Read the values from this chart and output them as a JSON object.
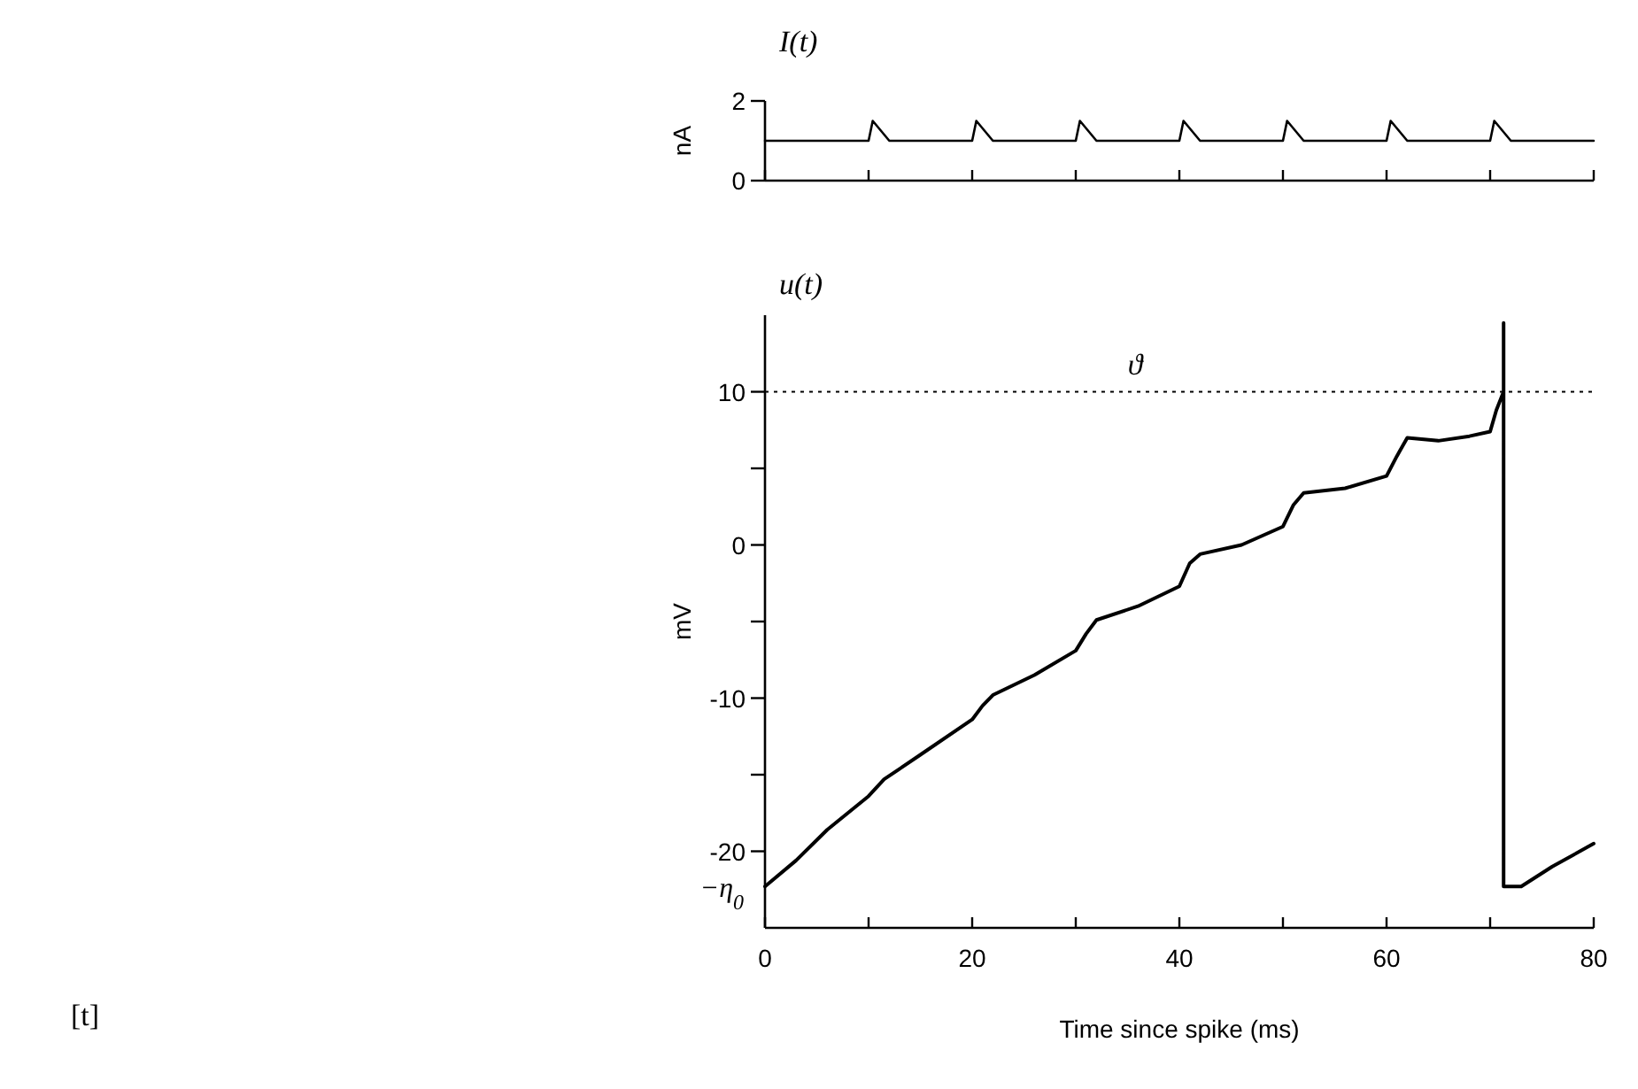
{
  "chart_data": [
    {
      "type": "line",
      "title": "I(t)",
      "ylabel": "nA",
      "xlim": [
        0,
        80
      ],
      "ylim": [
        0,
        2
      ],
      "yticks": [
        0,
        2
      ],
      "xticks": [
        {
          "value": 0,
          "label": null
        },
        {
          "value": 10,
          "label": null
        },
        {
          "value": 20,
          "label": null
        },
        {
          "value": 30,
          "label": null
        },
        {
          "value": 40,
          "label": null
        },
        {
          "value": 50,
          "label": null
        },
        {
          "value": 60,
          "label": null
        },
        {
          "value": 70,
          "label": null
        },
        {
          "value": 80,
          "label": null
        }
      ],
      "tick_labels": "y",
      "grid": false,
      "series": [
        {
          "color": "#000000",
          "x": [
            0,
            10,
            10.4,
            12,
            20,
            20.4,
            22,
            30,
            30.4,
            32,
            40,
            40.4,
            42,
            50,
            50.4,
            52,
            60,
            60.4,
            62,
            70,
            70.4,
            72,
            80
          ],
          "values": [
            1,
            1,
            1.5,
            1,
            1,
            1.5,
            1,
            1,
            1.5,
            1,
            1,
            1.5,
            1,
            1,
            1.5,
            1,
            1,
            1.5,
            1,
            1,
            1.5,
            1,
            1
          ]
        }
      ]
    },
    {
      "type": "line",
      "title": "u(t)",
      "ylabel": "mV",
      "xlabel": "Time since spike (ms)",
      "xlim": [
        0,
        80
      ],
      "ylim": [
        -25,
        15
      ],
      "xticks": [
        0,
        {
          "value": 10,
          "label": null
        },
        20,
        {
          "value": 30,
          "label": null
        },
        40,
        {
          "value": 50,
          "label": null
        },
        60,
        {
          "value": 70,
          "label": null
        },
        80
      ],
      "yticks": [
        -20,
        {
          "value": -15,
          "label": null
        },
        -10,
        {
          "value": -5,
          "label": null
        },
        0,
        {
          "value": 5,
          "label": null
        },
        10
      ],
      "grid": false,
      "ref_lines": [
        {
          "axis": "y",
          "value": 10,
          "label": "ϑ",
          "line_style": "dotted",
          "color": "#000000"
        }
      ],
      "annotations": [
        "[t]",
        {
          "text": "−η$_{0}$",
          "x": 0,
          "y": -22.3
        }
      ],
      "series": [
        {
          "color": "#000000",
          "x": [
            0,
            3,
            6,
            10,
            11.5,
            15,
            20,
            21,
            22,
            26,
            30,
            31,
            32,
            36,
            40,
            41,
            42,
            46,
            50,
            51,
            52,
            56,
            60,
            61,
            62,
            65,
            68,
            70,
            70.6,
            71.3,
            71.3,
            71.3,
            73,
            76,
            80
          ],
          "values": [
            -22.3,
            -20.6,
            -18.6,
            -16.4,
            -15.3,
            -13.7,
            -11.4,
            -10.5,
            -9.8,
            -8.5,
            -6.9,
            -5.8,
            -4.9,
            -4,
            -2.7,
            -1.2,
            -0.6,
            0,
            1.2,
            2.6,
            3.4,
            3.7,
            4.5,
            5.8,
            7,
            6.8,
            7.1,
            7.4,
            8.8,
            10,
            14.5,
            -22.3,
            -22.3,
            -21,
            -19.5
          ]
        }
      ]
    }
  ]
}
